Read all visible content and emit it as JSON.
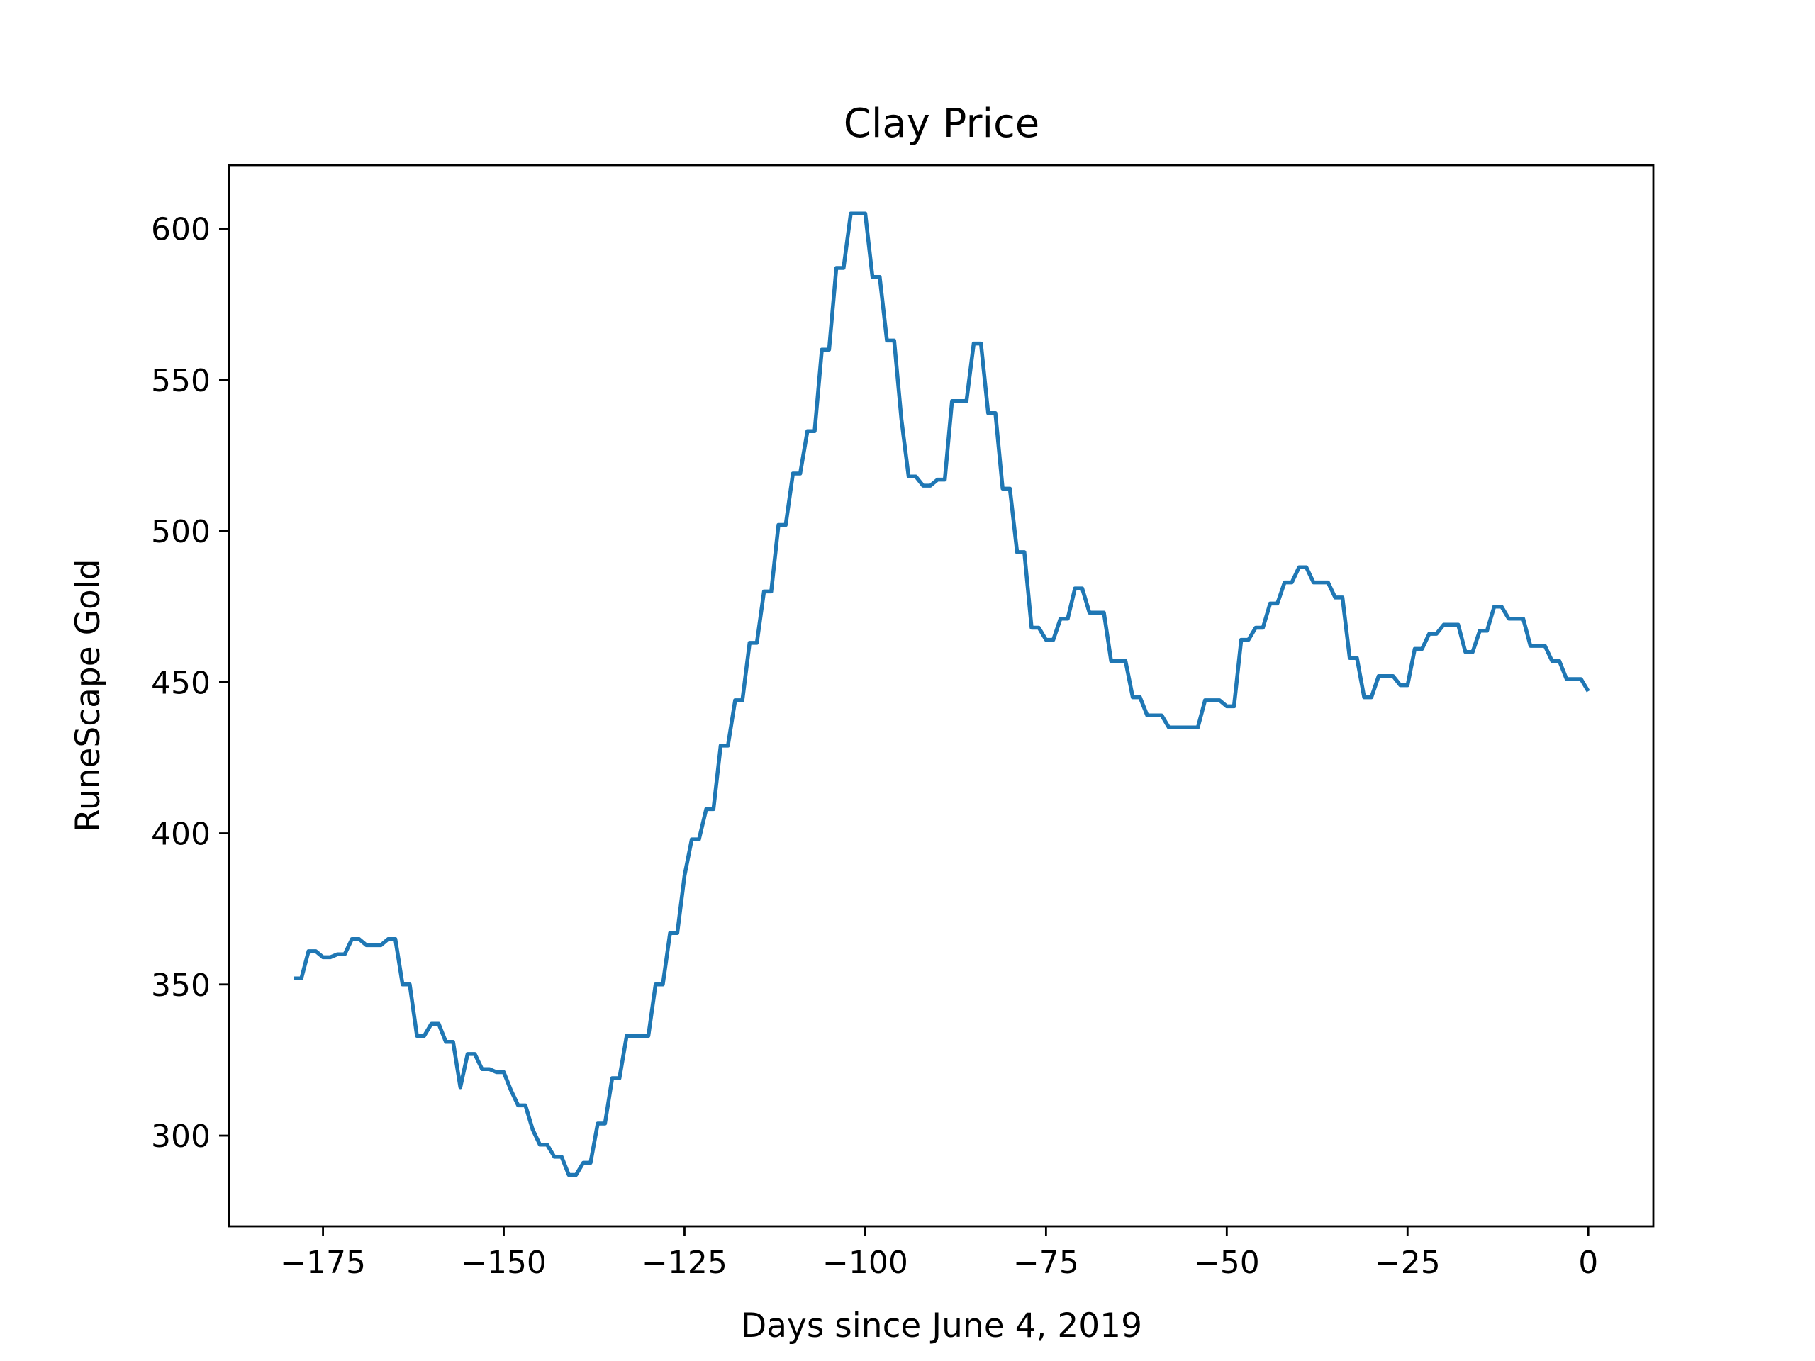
{
  "chart_data": {
    "type": "line",
    "title": "Clay Price",
    "xlabel": "Days since June 4, 2019",
    "ylabel": "RuneScape Gold",
    "xlim": [
      -188,
      9
    ],
    "ylim": [
      270,
      621
    ],
    "xticks": [
      -175,
      -150,
      -125,
      -100,
      -75,
      -50,
      -25,
      0
    ],
    "xtick_labels": [
      "−175",
      "−150",
      "−125",
      "−100",
      "−75",
      "−50",
      "−25",
      "0"
    ],
    "yticks": [
      300,
      350,
      400,
      450,
      500,
      550,
      600
    ],
    "ytick_labels": [
      "300",
      "350",
      "400",
      "450",
      "500",
      "550",
      "600"
    ],
    "grid": false,
    "line_color": "#1f77b4",
    "series": [
      {
        "x": [
          -179,
          -178,
          -177,
          -176,
          -175,
          -174,
          -173,
          -172,
          -171,
          -170,
          -169,
          -168,
          -167,
          -166,
          -165,
          -164,
          -163,
          -162,
          -161,
          -160,
          -159,
          -158,
          -157,
          -156,
          -155,
          -154,
          -153,
          -152,
          -151,
          -150,
          -149,
          -148,
          -147,
          -146,
          -145,
          -144,
          -143,
          -142,
          -141,
          -140,
          -139,
          -138,
          -137,
          -136,
          -135,
          -134,
          -133,
          -132,
          -131,
          -130,
          -129,
          -128,
          -127,
          -126,
          -125,
          -124,
          -123,
          -122,
          -121,
          -120,
          -119,
          -118,
          -117,
          -116,
          -115,
          -114,
          -113,
          -112,
          -111,
          -110,
          -109,
          -108,
          -107,
          -106,
          -105,
          -104,
          -103,
          -102,
          -101,
          -100,
          -99,
          -98,
          -97,
          -96,
          -95,
          -94,
          -93,
          -92,
          -91,
          -90,
          -89,
          -88,
          -87,
          -86,
          -85,
          -84,
          -83,
          -82,
          -81,
          -80,
          -79,
          -78,
          -77,
          -76,
          -75,
          -74,
          -73,
          -72,
          -71,
          -70,
          -69,
          -68,
          -67,
          -66,
          -65,
          -64,
          -63,
          -62,
          -61,
          -60,
          -59,
          -58,
          -57,
          -56,
          -55,
          -54,
          -53,
          -52,
          -51,
          -50,
          -49,
          -48,
          -47,
          -46,
          -45,
          -44,
          -43,
          -42,
          -41,
          -40,
          -39,
          -38,
          -37,
          -36,
          -35,
          -34,
          -33,
          -32,
          -31,
          -30,
          -29,
          -28,
          -27,
          -26,
          -25,
          -24,
          -23,
          -22,
          -21,
          -20,
          -19,
          -18,
          -17,
          -16,
          -15,
          -14,
          -13,
          -12,
          -11,
          -10,
          -9,
          -8,
          -7,
          -6,
          -5,
          -4,
          -3,
          -2,
          -1,
          0
        ],
        "values": [
          352,
          352,
          361,
          361,
          359,
          359,
          360,
          360,
          365,
          365,
          363,
          363,
          363,
          365,
          365,
          350,
          350,
          333,
          333,
          337,
          337,
          331,
          331,
          316,
          327,
          327,
          322,
          322,
          321,
          321,
          315,
          310,
          310,
          302,
          297,
          297,
          293,
          293,
          287,
          287,
          291,
          291,
          304,
          304,
          319,
          319,
          333,
          333,
          333,
          333,
          350,
          350,
          367,
          367,
          386,
          398,
          398,
          408,
          408,
          429,
          429,
          444,
          444,
          463,
          463,
          480,
          480,
          502,
          502,
          519,
          519,
          533,
          533,
          560,
          560,
          587,
          587,
          605,
          605,
          605,
          584,
          584,
          563,
          563,
          537,
          518,
          518,
          515,
          515,
          517,
          517,
          543,
          543,
          543,
          562,
          562,
          539,
          539,
          514,
          514,
          493,
          493,
          468,
          468,
          464,
          464,
          471,
          471,
          481,
          481,
          473,
          473,
          473,
          457,
          457,
          457,
          445,
          445,
          439,
          439,
          439,
          435,
          435,
          435,
          435,
          435,
          444,
          444,
          444,
          442,
          442,
          464,
          464,
          468,
          468,
          476,
          476,
          483,
          483,
          488,
          488,
          483,
          483,
          483,
          478,
          478,
          458,
          458,
          445,
          445,
          452,
          452,
          452,
          449,
          449,
          461,
          461,
          466,
          466,
          469,
          469,
          469,
          460,
          460,
          467,
          467,
          475,
          475,
          471,
          471,
          471,
          462,
          462,
          462,
          457,
          457,
          451,
          451,
          451,
          447
        ]
      }
    ]
  }
}
